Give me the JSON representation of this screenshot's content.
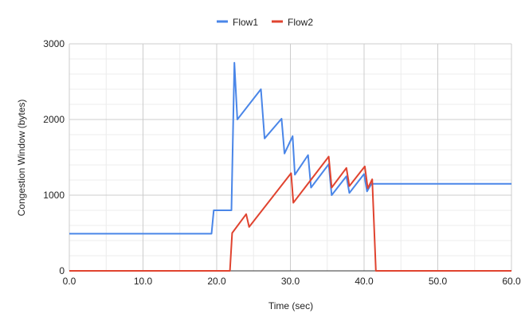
{
  "chart_data": {
    "type": "line",
    "title": "",
    "xlabel": "Time (sec)",
    "ylabel": "Congestion Window (bytes)",
    "xlim": [
      0,
      60
    ],
    "ylim": [
      0,
      3000
    ],
    "x_ticks": [
      "0.0",
      "10.0",
      "20.0",
      "30.0",
      "40.0",
      "50.0",
      "60.0"
    ],
    "y_ticks": [
      "0",
      "1000",
      "2000",
      "3000"
    ],
    "x_tick_values": [
      0,
      10,
      20,
      30,
      40,
      50,
      60
    ],
    "y_tick_values": [
      0,
      1000,
      2000,
      3000
    ],
    "x_minor_ticks": [
      5,
      15,
      25,
      35,
      45,
      55
    ],
    "y_minor_ticks": [
      200,
      400,
      600,
      800,
      1200,
      1400,
      1600,
      1800,
      2200,
      2400,
      2600,
      2800
    ],
    "grid": true,
    "legend_position": "top",
    "series": [
      {
        "name": "Flow1",
        "color": "#4a86e8",
        "points": [
          [
            0,
            490
          ],
          [
            19.3,
            490
          ],
          [
            19.6,
            800
          ],
          [
            22.0,
            800
          ],
          [
            22.4,
            2750
          ],
          [
            22.8,
            2000
          ],
          [
            26.0,
            2400
          ],
          [
            26.5,
            1750
          ],
          [
            28.8,
            2010
          ],
          [
            29.2,
            1550
          ],
          [
            30.3,
            1780
          ],
          [
            30.6,
            1270
          ],
          [
            32.4,
            1530
          ],
          [
            32.8,
            1100
          ],
          [
            35.2,
            1410
          ],
          [
            35.6,
            1000
          ],
          [
            37.6,
            1250
          ],
          [
            38.0,
            1030
          ],
          [
            40.0,
            1280
          ],
          [
            40.4,
            1050
          ],
          [
            41.0,
            1150
          ],
          [
            60,
            1150
          ]
        ]
      },
      {
        "name": "Flow2",
        "color": "#e0432f",
        "points": [
          [
            0,
            0
          ],
          [
            21.8,
            0
          ],
          [
            22.1,
            500
          ],
          [
            24.0,
            750
          ],
          [
            24.4,
            580
          ],
          [
            30.1,
            1290
          ],
          [
            30.4,
            900
          ],
          [
            35.2,
            1510
          ],
          [
            35.6,
            1100
          ],
          [
            37.6,
            1360
          ],
          [
            38.0,
            1120
          ],
          [
            40.1,
            1380
          ],
          [
            40.5,
            1090
          ],
          [
            41.1,
            1210
          ],
          [
            41.6,
            0
          ],
          [
            60,
            0
          ]
        ]
      }
    ]
  }
}
